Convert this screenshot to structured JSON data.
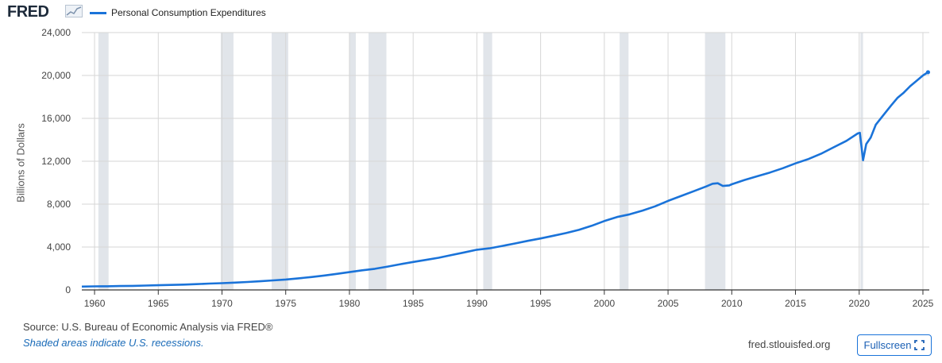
{
  "header": {
    "logo_text": "FRED",
    "logo_graph_icon": "line-chart-icon"
  },
  "chart_data": {
    "type": "line",
    "title": "",
    "xlabel": "",
    "ylabel": "Billions of Dollars",
    "xlim": [
      1959.0,
      2025.5
    ],
    "ylim": [
      0,
      24000
    ],
    "grid": true,
    "legend": "top-left",
    "x_ticks": [
      1960,
      1965,
      1970,
      1975,
      1980,
      1985,
      1990,
      1995,
      2000,
      2005,
      2010,
      2015,
      2020,
      2025
    ],
    "y_ticks": [
      0,
      4000,
      8000,
      12000,
      16000,
      20000,
      24000
    ],
    "y_tick_labels": [
      "0",
      "4,000",
      "8,000",
      "12,000",
      "16,000",
      "20,000",
      "24,000"
    ],
    "x_tick_labels": [
      "1960",
      "1965",
      "1970",
      "1975",
      "1980",
      "1985",
      "1990",
      "1995",
      "2000",
      "2005",
      "2010",
      "2015",
      "2020",
      "2025"
    ],
    "recessions": [
      [
        1960.3,
        1961.1
      ],
      [
        1969.9,
        1970.9
      ],
      [
        1973.9,
        1975.2
      ],
      [
        1980.0,
        1980.5
      ],
      [
        1981.5,
        1982.9
      ],
      [
        1990.5,
        1991.2
      ],
      [
        2001.2,
        2001.9
      ],
      [
        2007.9,
        2009.5
      ],
      [
        2020.1,
        2020.3
      ]
    ],
    "series": [
      {
        "name": "Personal Consumption Expenditures",
        "color": "#1a73d9",
        "points": [
          [
            1959.0,
            310
          ],
          [
            1960.0,
            330
          ],
          [
            1961.0,
            340
          ],
          [
            1962.0,
            360
          ],
          [
            1963.0,
            380
          ],
          [
            1964.0,
            410
          ],
          [
            1965.0,
            440
          ],
          [
            1966.0,
            470
          ],
          [
            1967.0,
            500
          ],
          [
            1968.0,
            540
          ],
          [
            1969.0,
            590
          ],
          [
            1970.0,
            630
          ],
          [
            1971.0,
            680
          ],
          [
            1972.0,
            740
          ],
          [
            1973.0,
            810
          ],
          [
            1974.0,
            890
          ],
          [
            1975.0,
            970
          ],
          [
            1976.0,
            1080
          ],
          [
            1977.0,
            1200
          ],
          [
            1978.0,
            1340
          ],
          [
            1979.0,
            1500
          ],
          [
            1980.0,
            1660
          ],
          [
            1981.0,
            1830
          ],
          [
            1982.0,
            1970
          ],
          [
            1983.0,
            2180
          ],
          [
            1984.0,
            2400
          ],
          [
            1985.0,
            2610
          ],
          [
            1986.0,
            2800
          ],
          [
            1987.0,
            3000
          ],
          [
            1988.0,
            3250
          ],
          [
            1989.0,
            3500
          ],
          [
            1990.0,
            3750
          ],
          [
            1991.0,
            3880
          ],
          [
            1992.0,
            4100
          ],
          [
            1993.0,
            4330
          ],
          [
            1994.0,
            4580
          ],
          [
            1995.0,
            4800
          ],
          [
            1996.0,
            5050
          ],
          [
            1997.0,
            5300
          ],
          [
            1998.0,
            5600
          ],
          [
            1999.0,
            5980
          ],
          [
            2000.0,
            6420
          ],
          [
            2001.0,
            6800
          ],
          [
            2002.0,
            7050
          ],
          [
            2003.0,
            7400
          ],
          [
            2004.0,
            7800
          ],
          [
            2005.0,
            8300
          ],
          [
            2006.0,
            8750
          ],
          [
            2007.0,
            9200
          ],
          [
            2008.0,
            9650
          ],
          [
            2008.5,
            9900
          ],
          [
            2008.9,
            9950
          ],
          [
            2009.3,
            9700
          ],
          [
            2009.8,
            9750
          ],
          [
            2010.0,
            9850
          ],
          [
            2011.0,
            10250
          ],
          [
            2012.0,
            10600
          ],
          [
            2013.0,
            10950
          ],
          [
            2014.0,
            11350
          ],
          [
            2015.0,
            11800
          ],
          [
            2016.0,
            12200
          ],
          [
            2017.0,
            12700
          ],
          [
            2018.0,
            13300
          ],
          [
            2019.0,
            13900
          ],
          [
            2019.9,
            14600
          ],
          [
            2020.05,
            14650
          ],
          [
            2020.3,
            12100
          ],
          [
            2020.55,
            13600
          ],
          [
            2020.9,
            14200
          ],
          [
            2021.3,
            15400
          ],
          [
            2021.9,
            16300
          ],
          [
            2022.5,
            17200
          ],
          [
            2023.0,
            17900
          ],
          [
            2023.5,
            18400
          ],
          [
            2024.0,
            19000
          ],
          [
            2024.5,
            19500
          ],
          [
            2025.0,
            20000
          ],
          [
            2025.4,
            20300
          ]
        ]
      }
    ]
  },
  "footer": {
    "source": "Source: U.S. Bureau of Economic Analysis via FRED®",
    "note": "Shaded areas indicate U.S. recessions.",
    "site": "fred.stlouisfed.org",
    "fullscreen_label": "Fullscreen",
    "fullscreen_icon": "expand-icon"
  }
}
